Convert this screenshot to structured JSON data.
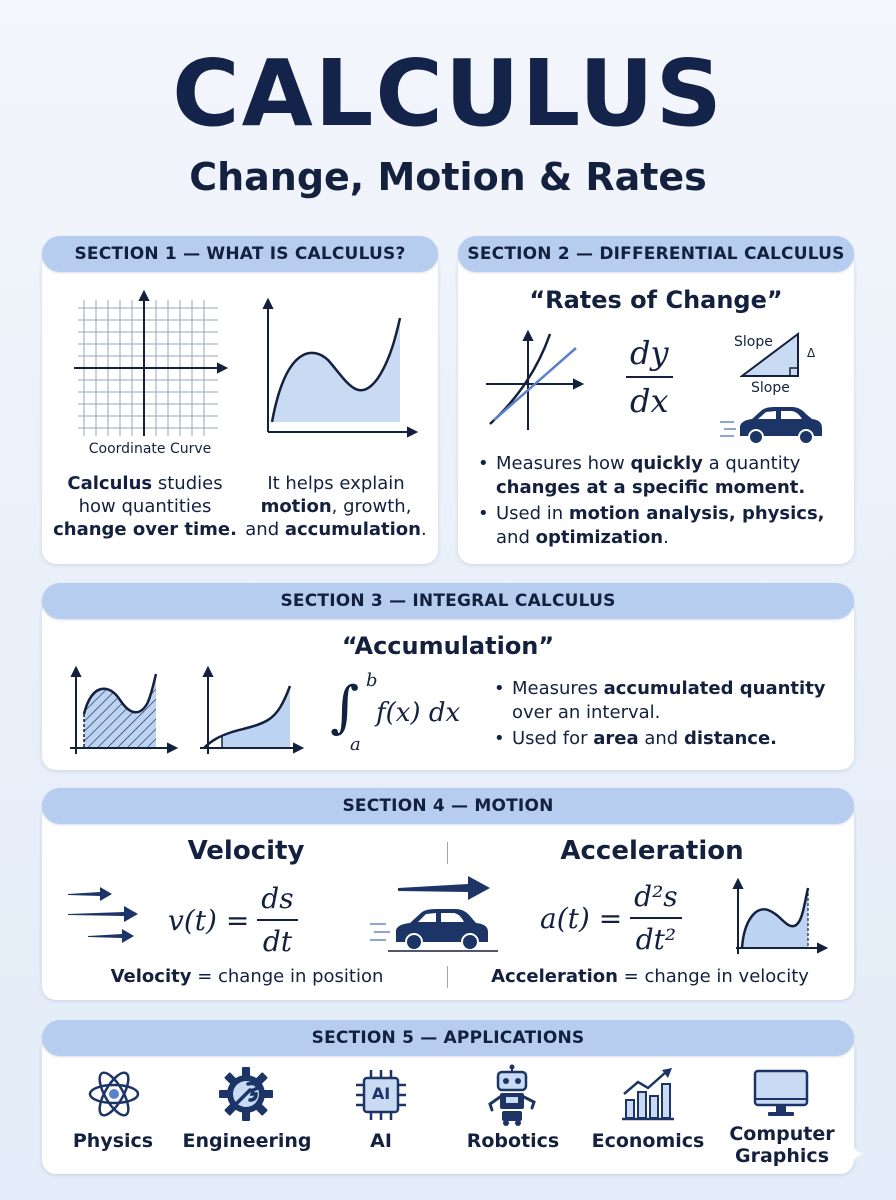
{
  "header": {
    "title": "CALCULUS",
    "subtitle": "Change, Motion & Rates"
  },
  "section1": {
    "label": "SECTION 1 — WHAT IS CALCULUS?",
    "graph_caption": "Coordinate Curve",
    "left_text": {
      "bold": "Calculus",
      "rest1": " studies",
      "line2": "how quantities",
      "line3": "change over time."
    },
    "right_text": {
      "line1": "It helps explain",
      "line2a": "motion",
      "line2b": ", growth,",
      "line3a": "and ",
      "line3b": "accumulation",
      "line3c": "."
    }
  },
  "section2": {
    "label": "SECTION 2 — DIFFERENTIAL CALCULUS",
    "heading": "“Rates of Change”",
    "deriv_num": "dy",
    "deriv_den": "dx",
    "slope_top": "Slope",
    "slope_bottom": "Slope",
    "delta": "Δ",
    "bullet1": {
      "a": "Measures how ",
      "b": "quickly",
      "c": " a quantity",
      "d": "changes at a specific moment."
    },
    "bullet2": {
      "a": "Used in ",
      "b": "motion analysis, physics,",
      "c": "and ",
      "d": "optimization",
      "e": "."
    }
  },
  "section3": {
    "label": "SECTION 3 — INTEGRAL CALCULUS",
    "heading": "“Accumulation”",
    "upper": "b",
    "lower": "a",
    "integrand": "f(x) dx",
    "bullet1": {
      "a": "Measures ",
      "b": "accumulated quantity",
      "c": "over an interval."
    },
    "bullet2": {
      "a": "Used for ",
      "b": "area",
      "c": " and ",
      "d": "distance."
    }
  },
  "section4": {
    "label": "SECTION 4 — MOTION",
    "velocity_heading": "Velocity",
    "acceleration_heading": "Acceleration",
    "v_lhs": "v(t) =",
    "v_num": "ds",
    "v_den": "dt",
    "a_lhs": "a(t) =",
    "a_num": "d²s",
    "a_den": "dt²",
    "velocity_caption": {
      "bold": "Velocity",
      "rest": " = change in position"
    },
    "acceleration_caption": {
      "bold": "Acceleration",
      "rest": " = change in velocity"
    }
  },
  "section5": {
    "label": "SECTION 5 — APPLICATIONS",
    "ai_chip_text": "AI",
    "items": [
      {
        "label": "Physics",
        "icon": "atom-icon"
      },
      {
        "label": "Engineering",
        "icon": "gear-wrench-icon"
      },
      {
        "label": "AI",
        "icon": "ai-chip-icon"
      },
      {
        "label": "Robotics",
        "icon": "robot-icon"
      },
      {
        "label": "Economics",
        "icon": "bar-chart-icon"
      },
      {
        "label1": "Computer",
        "label2": "Graphics",
        "icon": "monitor-icon"
      }
    ]
  },
  "colors": {
    "navy": "#13213f",
    "pill": "#b6cdf0",
    "fill": "#bcd3f2"
  }
}
